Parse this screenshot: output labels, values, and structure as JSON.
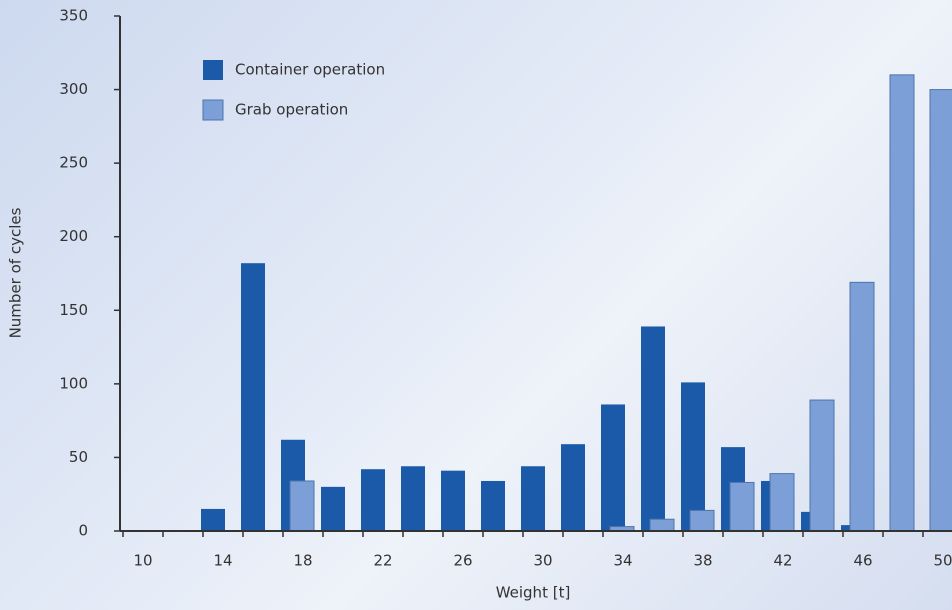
{
  "chart_data": {
    "type": "bar",
    "x_label": "Weight [t]",
    "y_label": "Number of cycles",
    "categories": [
      "10",
      null,
      "14",
      null,
      "18",
      null,
      "22",
      null,
      "26",
      null,
      "30",
      null,
      "34",
      null,
      "38",
      null,
      "42",
      null,
      "46",
      null,
      "50"
    ],
    "series": [
      {
        "name": "Container operation",
        "color": "#1a5aa8",
        "values": [
          null,
          null,
          15,
          182,
          62,
          30,
          42,
          44,
          41,
          34,
          44,
          59,
          86,
          139,
          101,
          57,
          34,
          13,
          4,
          null,
          null
        ]
      },
      {
        "name": "Grab operation",
        "color": "#7b9fd6",
        "values": [
          null,
          null,
          null,
          null,
          34,
          null,
          null,
          null,
          null,
          null,
          null,
          null,
          3,
          8,
          14,
          33,
          39,
          89,
          169,
          310,
          300
        ]
      }
    ],
    "ylim": [
      0,
      350
    ],
    "yticks": [
      0,
      50,
      100,
      150,
      200,
      250,
      300,
      350
    ],
    "grid": false,
    "legend": "top-left"
  }
}
